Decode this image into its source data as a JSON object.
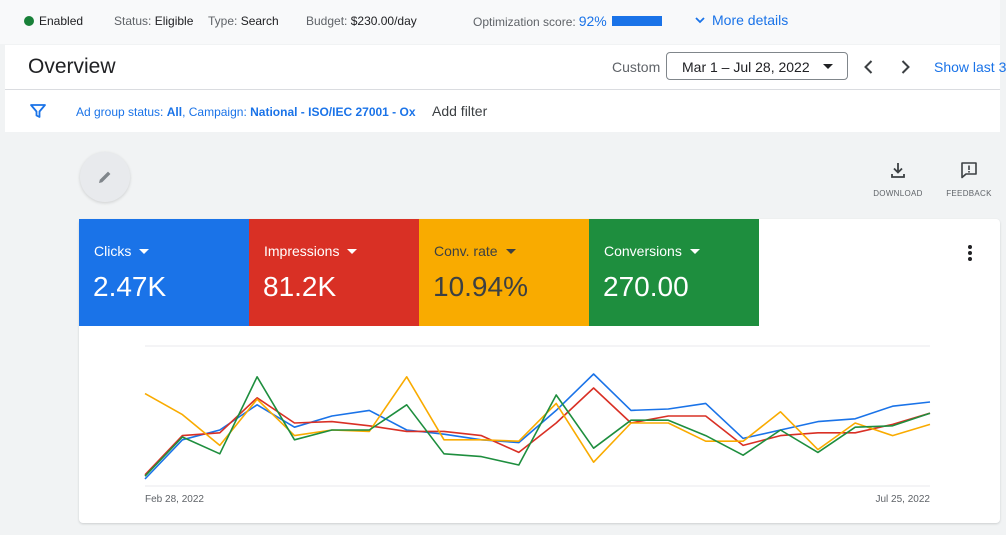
{
  "status_bar": {
    "enabled": "Enabled",
    "status_label": "Status:",
    "status_value": "Eligible",
    "type_label": "Type:",
    "type_value": "Search",
    "budget_label": "Budget:",
    "budget_value": "$230.00/day",
    "optimization_label": "Optimization score:",
    "optimization_value": "92%",
    "optimization_fraction": 0.92,
    "more_details": "More details"
  },
  "header": {
    "title": "Overview",
    "custom_label": "Custom",
    "date_range": "Mar 1 – Jul 28, 2022",
    "show_last": "Show last 3"
  },
  "filter_bar": {
    "ad_group_label": "Ad group status:",
    "ad_group_value": "All",
    "campaign_label": "Campaign:",
    "campaign_value": "National - ISO/IEC 27001 - Ox",
    "add_filter": "Add filter"
  },
  "tools": {
    "download": "DOWNLOAD",
    "feedback": "FEEDBACK"
  },
  "metrics": [
    {
      "label": "Clicks",
      "value": "2.47K",
      "color": "#1a73e8"
    },
    {
      "label": "Impressions",
      "value": "81.2K",
      "color": "#d93025"
    },
    {
      "label": "Conv. rate",
      "value": "10.94%",
      "color": "#f9ab00"
    },
    {
      "label": "Conversions",
      "value": "270.00",
      "color": "#1e8e3e"
    }
  ],
  "chart_data": {
    "type": "line",
    "x_start_label": "Feb 28, 2022",
    "x_end_label": "Jul 25, 2022",
    "grid": true,
    "series": [
      {
        "color": "#1a73e8",
        "values": [
          0.05,
          0.33,
          0.4,
          0.58,
          0.42,
          0.5,
          0.54,
          0.4,
          0.37,
          0.33,
          0.31,
          0.54,
          0.8,
          0.54,
          0.55,
          0.59,
          0.34,
          0.4,
          0.46,
          0.48,
          0.57,
          0.6
        ]
      },
      {
        "color": "#d93025",
        "values": [
          0.08,
          0.36,
          0.38,
          0.63,
          0.45,
          0.46,
          0.43,
          0.39,
          0.39,
          0.36,
          0.24,
          0.45,
          0.7,
          0.45,
          0.5,
          0.5,
          0.29,
          0.36,
          0.38,
          0.38,
          0.44,
          0.52
        ]
      },
      {
        "color": "#f9ab00",
        "values": [
          0.66,
          0.51,
          0.29,
          0.62,
          0.36,
          0.4,
          0.39,
          0.78,
          0.33,
          0.33,
          0.32,
          0.59,
          0.17,
          0.45,
          0.45,
          0.32,
          0.32,
          0.53,
          0.26,
          0.45,
          0.36,
          0.44
        ]
      },
      {
        "color": "#1e8e3e",
        "values": [
          0.07,
          0.35,
          0.23,
          0.78,
          0.33,
          0.4,
          0.4,
          0.58,
          0.23,
          0.21,
          0.15,
          0.65,
          0.27,
          0.47,
          0.47,
          0.36,
          0.22,
          0.4,
          0.24,
          0.42,
          0.43,
          0.52
        ]
      }
    ]
  }
}
